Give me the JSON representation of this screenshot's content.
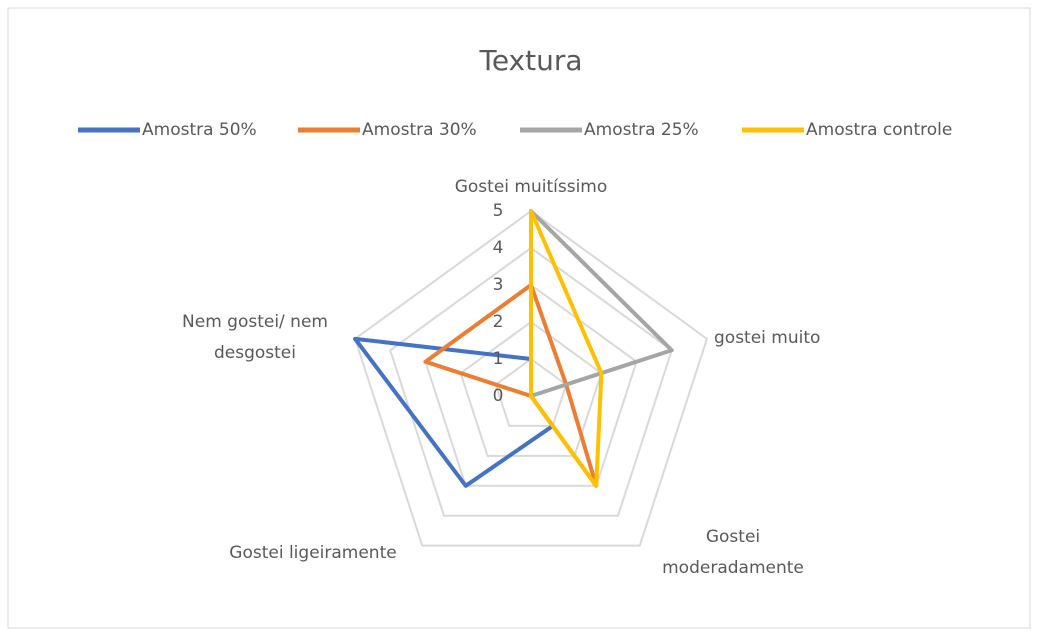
{
  "chart_data": {
    "type": "radar",
    "title": "Textura",
    "categories": [
      "Gostei muitíssimo",
      "gostei muito",
      "Gostei moderadamente",
      "Gostei ligeiramente",
      "Nem gostei/ nem desgostei"
    ],
    "series": [
      {
        "name": "Amostra 50%",
        "color": "#4472c4",
        "values": [
          1,
          0,
          1,
          3,
          5
        ]
      },
      {
        "name": "Amostra 30%",
        "color": "#ed7d31",
        "values": [
          3,
          1,
          3,
          0,
          3
        ]
      },
      {
        "name": "Amostra 25%",
        "color": "#a5a5a5",
        "values": [
          5,
          4,
          0,
          0,
          0
        ]
      },
      {
        "name": "Amostra controle",
        "color": "#ffc000",
        "values": [
          5,
          2,
          3,
          0,
          0
        ]
      }
    ],
    "ylim": [
      0,
      5
    ],
    "yticks": [
      0,
      1,
      2,
      3,
      4,
      5
    ],
    "grid": true,
    "legend": "top"
  }
}
